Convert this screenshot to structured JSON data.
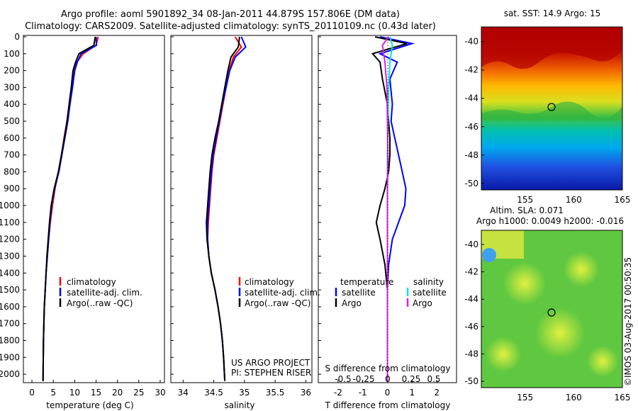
{
  "title": {
    "line1": "Argo profile: aoml 5901892_34 08-Jan-2011 44.879S 157.806E (DM data)",
    "line2": "Climatology: CARS2009. Satellite-adjusted climatology: synTS_20110109.nc (0.43d later)"
  },
  "colors": {
    "climatology": "#ff0000",
    "satellite": "#0000ff",
    "argo": "#000000",
    "sal_satellite": "#00e5e5",
    "sal_argo": "#e020e0"
  },
  "panels": {
    "temperature": {
      "xlabel": "temperature (deg C)",
      "xlim": [
        -2,
        31
      ],
      "xticks": [
        0,
        5,
        10,
        15,
        20,
        25,
        30
      ],
      "legend": [
        "climatology",
        "satellite-adj. clim.",
        "Argo(..raw -QC)"
      ]
    },
    "salinity": {
      "xlabel": "salinity",
      "xlim": [
        33.8,
        36.1
      ],
      "xticks": [
        "34",
        "34.5",
        "35",
        "35.5",
        "36"
      ],
      "legend": [
        "climatology",
        "satellite-adj. clim.",
        "Argo(..raw -QC)"
      ],
      "credit1": "US ARGO PROJECT",
      "credit2": "PI: STEPHEN RISER"
    },
    "difference": {
      "xlabel": "T difference from climatology",
      "xlabel2": "S difference from climatology",
      "xlim": [
        -2.8,
        2.8
      ],
      "xticks": [
        "-2",
        "-1",
        "0",
        "1",
        "2"
      ],
      "s_ticks": [
        "-0.5",
        "-0.25",
        "0",
        "0.25",
        "0.5"
      ],
      "legend_t_title": "temperature",
      "legend_s_title": "salinity",
      "legend_t": [
        "satellite",
        "Argo"
      ],
      "legend_s": [
        "satellite",
        "Argo"
      ]
    },
    "sst_map": {
      "title": "sat. SST: 14.9 Argo: 15",
      "xticks": [
        "155",
        "160",
        "165"
      ],
      "yticks": [
        "-40",
        "-42",
        "-44",
        "-46",
        "-48",
        "-50"
      ]
    },
    "sla_map": {
      "title1": "Altim. SLA: 0.071",
      "title2": "Argo h1000: 0.0049 h2000: -0.016",
      "xticks": [
        "155",
        "160",
        "165"
      ],
      "yticks": [
        "-40",
        "-42",
        "-44",
        "-46",
        "-48",
        "-50"
      ]
    }
  },
  "depth_ticks": [
    "0",
    "100",
    "200",
    "300",
    "400",
    "500",
    "600",
    "700",
    "800",
    "900",
    "1000",
    "1100",
    "1200",
    "1300",
    "1400",
    "1500",
    "1600",
    "1700",
    "1800",
    "1900",
    "2000"
  ],
  "side_text": "©IMOS 03-Aug-2017 00:50:35",
  "chart_data": [
    {
      "type": "line",
      "title": "",
      "xlabel": "temperature (deg C)",
      "ylabel": "",
      "xlim": [
        -2,
        31
      ],
      "ylim": [
        2060,
        0
      ],
      "y_reversed": true,
      "series": [
        {
          "name": "climatology",
          "x": [
            15.5,
            15.0,
            12.0,
            10.5,
            9.9,
            9.4,
            8.8,
            8.2,
            7.5,
            6.9,
            6.2,
            5.4,
            4.8,
            4.3,
            3.9,
            3.6,
            3.3,
            3.1,
            2.9,
            2.8,
            2.7,
            2.6
          ],
          "y": [
            0,
            50,
            100,
            150,
            200,
            300,
            400,
            500,
            600,
            700,
            800,
            900,
            1000,
            1100,
            1200,
            1300,
            1400,
            1500,
            1600,
            1700,
            1800,
            2040
          ]
        },
        {
          "name": "satellite-adj. clim.",
          "x": [
            15.0,
            15.1,
            11.5,
            10.6,
            10.0,
            9.5,
            8.9,
            8.4,
            7.7,
            7.0,
            6.3,
            5.3,
            4.6,
            4.2,
            3.9,
            3.6,
            3.3,
            3.1,
            2.9,
            2.8,
            2.7,
            2.6
          ],
          "y": [
            0,
            50,
            100,
            150,
            200,
            300,
            400,
            500,
            600,
            700,
            800,
            900,
            1000,
            1100,
            1200,
            1300,
            1400,
            1500,
            1600,
            1700,
            1800,
            2040
          ]
        },
        {
          "name": "Argo(..raw -QC)",
          "x": [
            14.8,
            14.5,
            11.0,
            10.2,
            9.6,
            9.2,
            8.7,
            8.2,
            7.6,
            6.9,
            6.2,
            5.2,
            4.5,
            4.1,
            3.8,
            3.5,
            3.3,
            3.1,
            2.9,
            2.8,
            2.7,
            2.6
          ],
          "y": [
            0,
            50,
            100,
            150,
            200,
            300,
            400,
            500,
            600,
            700,
            800,
            900,
            1000,
            1100,
            1200,
            1300,
            1400,
            1500,
            1600,
            1700,
            1800,
            2040
          ]
        }
      ]
    },
    {
      "type": "line",
      "title": "",
      "xlabel": "salinity",
      "ylabel": "",
      "xlim": [
        33.8,
        36.1
      ],
      "ylim": [
        2060,
        0
      ],
      "y_reversed": true,
      "series": [
        {
          "name": "climatology",
          "x": [
            34.85,
            34.95,
            34.82,
            34.75,
            34.7,
            34.65,
            34.6,
            34.55,
            34.5,
            34.47,
            34.45,
            34.43,
            34.41,
            34.4,
            34.42,
            34.46,
            34.52,
            34.57,
            34.61,
            34.64,
            34.66,
            34.68
          ],
          "y": [
            0,
            60,
            120,
            200,
            300,
            400,
            500,
            600,
            700,
            800,
            900,
            1000,
            1100,
            1200,
            1300,
            1400,
            1500,
            1600,
            1700,
            1800,
            1900,
            2040
          ]
        },
        {
          "name": "satellite-adj. clim.",
          "x": [
            34.95,
            35.02,
            34.85,
            34.76,
            34.7,
            34.64,
            34.59,
            34.54,
            34.49,
            34.46,
            34.44,
            34.42,
            34.4,
            34.4,
            34.42,
            34.46,
            34.52,
            34.57,
            34.61,
            34.64,
            34.66,
            34.68
          ],
          "y": [
            0,
            60,
            120,
            200,
            300,
            400,
            500,
            600,
            700,
            800,
            900,
            1000,
            1100,
            1200,
            1300,
            1400,
            1500,
            1600,
            1700,
            1800,
            1900,
            2040
          ]
        },
        {
          "name": "Argo(..raw -QC)",
          "x": [
            34.92,
            34.9,
            34.78,
            34.73,
            34.68,
            34.63,
            34.58,
            34.52,
            34.47,
            34.44,
            34.42,
            34.4,
            34.38,
            34.39,
            34.42,
            34.46,
            34.52,
            34.57,
            34.61,
            34.64,
            34.66,
            34.68
          ],
          "y": [
            0,
            60,
            120,
            200,
            300,
            400,
            500,
            600,
            700,
            800,
            900,
            1000,
            1100,
            1200,
            1300,
            1400,
            1500,
            1600,
            1700,
            1800,
            1900,
            2040
          ]
        }
      ]
    },
    {
      "type": "line",
      "title": "",
      "xlabel": "T difference from climatology",
      "ylabel": "",
      "xlim": [
        -2.8,
        2.8
      ],
      "ylim": [
        2060,
        0
      ],
      "y_reversed": true,
      "series": [
        {
          "name": "temperature satellite",
          "x": [
            -0.3,
            1.0,
            -0.3,
            0.4,
            0.1,
            0.2,
            0.15,
            0.3,
            0.45,
            0.6,
            0.75,
            0.7,
            0.45,
            0.2,
            0.05,
            0.0,
            0.0,
            0.0,
            0.0,
            0.0
          ],
          "y": [
            0,
            40,
            100,
            150,
            250,
            400,
            500,
            600,
            700,
            800,
            900,
            1000,
            1100,
            1200,
            1350,
            1500,
            1600,
            1700,
            1800,
            2040
          ]
        },
        {
          "name": "temperature Argo",
          "x": [
            -0.5,
            0.8,
            -0.6,
            -0.3,
            -0.2,
            0.0,
            0.05,
            0.1,
            0.1,
            0.05,
            -0.1,
            -0.3,
            -0.45,
            -0.3,
            -0.1,
            0.0,
            0.0,
            0.0,
            0.0,
            0.0
          ],
          "y": [
            0,
            40,
            100,
            150,
            250,
            400,
            500,
            600,
            700,
            800,
            900,
            1000,
            1100,
            1200,
            1350,
            1500,
            1600,
            1700,
            1800,
            2040
          ]
        },
        {
          "name": "salinity satellite",
          "x": [
            0.1,
            0.2,
            0.1,
            0.05,
            0.02,
            0.0,
            0.0,
            0.0,
            0.0,
            0.0,
            0.0,
            0.0
          ],
          "y": [
            0,
            50,
            150,
            300,
            500,
            700,
            900,
            1100,
            1300,
            1500,
            1800,
            2040
          ]
        },
        {
          "name": "salinity Argo",
          "x": [
            0.05,
            -0.2,
            -0.1,
            -0.02,
            0.0,
            0.02,
            0.0,
            0.0,
            0.0,
            0.0,
            0.0,
            0.0
          ],
          "y": [
            0,
            50,
            150,
            300,
            500,
            700,
            900,
            1100,
            1300,
            1500,
            1800,
            2040
          ]
        }
      ]
    }
  ]
}
